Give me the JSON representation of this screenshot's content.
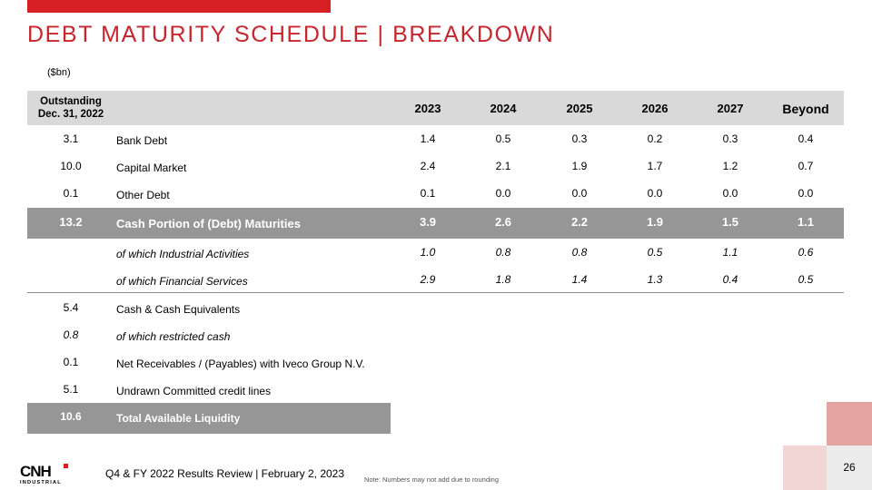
{
  "page": {
    "title": "DEBT MATURITY SCHEDULE | BREAKDOWN",
    "units": "($bn)",
    "brand_color": "#d71f26"
  },
  "table": {
    "header": {
      "outstanding": "Outstanding\nDec. 31, 2022",
      "years": [
        "2023",
        "2024",
        "2025",
        "2026",
        "2027",
        "Beyond"
      ]
    },
    "rows": [
      {
        "outstanding": "3.1",
        "label": "Bank Debt",
        "values": [
          "1.4",
          "0.5",
          "0.3",
          "0.2",
          "0.3",
          "0.4"
        ]
      },
      {
        "outstanding": "10.0",
        "label": "Capital Market",
        "values": [
          "2.4",
          "2.1",
          "1.9",
          "1.7",
          "1.2",
          "0.7"
        ]
      },
      {
        "outstanding": "0.1",
        "label": "Other Debt",
        "values": [
          "0.1",
          "0.0",
          "0.0",
          "0.0",
          "0.0",
          "0.0"
        ]
      },
      {
        "outstanding": "13.2",
        "label": "Cash Portion of (Debt) Maturities",
        "values": [
          "3.9",
          "2.6",
          "2.2",
          "1.9",
          "1.5",
          "1.1"
        ]
      },
      {
        "outstanding": "",
        "label": "of which Industrial Activities",
        "values": [
          "1.0",
          "0.8",
          "0.8",
          "0.5",
          "1.1",
          "0.6"
        ]
      },
      {
        "outstanding": "",
        "label": "of which Financial Services",
        "values": [
          "2.9",
          "1.8",
          "1.4",
          "1.3",
          "0.4",
          "0.5"
        ]
      }
    ]
  },
  "liquidity": {
    "rows": [
      {
        "outstanding": "5.4",
        "label": "Cash & Cash Equivalents"
      },
      {
        "outstanding": "0.8",
        "label": "of which restricted cash"
      },
      {
        "outstanding": "0.1",
        "label": "Net Receivables / (Payables) with Iveco Group N.V."
      },
      {
        "outstanding": "5.1",
        "label": "Undrawn Committed credit lines"
      },
      {
        "outstanding": "10.6",
        "label": "Total Available Liquidity"
      }
    ]
  },
  "footer": {
    "logo_text": "CNH",
    "logo_sub": "INDUSTRIAL",
    "text": "Q4 & FY 2022 Results Review | February 2, 2023",
    "note": "Note: Numbers may not add due to rounding",
    "page_number": "26"
  }
}
